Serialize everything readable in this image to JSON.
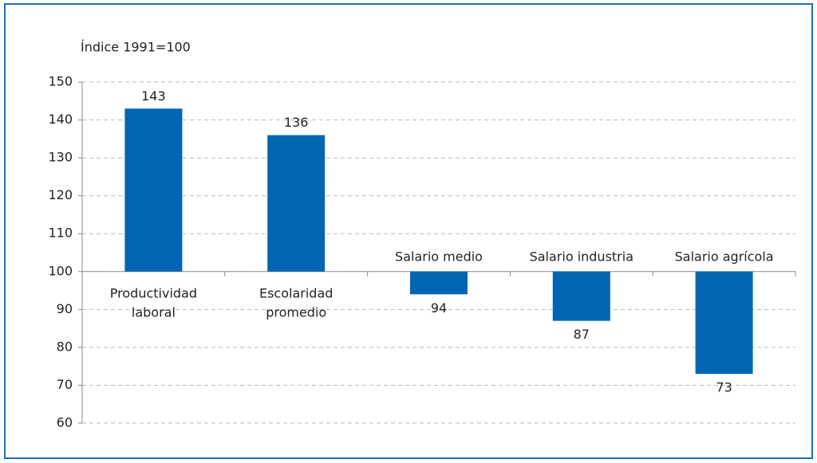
{
  "chart_data": {
    "type": "bar",
    "ylabel": "Índice 1991=100",
    "categories": [
      [
        "Productividad",
        "laboral"
      ],
      [
        "Escolaridad",
        "promedio"
      ],
      [
        "Salario medio"
      ],
      [
        "Salario industria"
      ],
      [
        "Salario agrícola"
      ]
    ],
    "values": [
      143,
      136,
      94,
      87,
      73
    ],
    "color": "#0066b3",
    "baseline": 100,
    "ylim": [
      60,
      150
    ],
    "yticks": [
      60,
      70,
      80,
      90,
      100,
      110,
      120,
      130,
      140,
      150
    ],
    "grid": true
  }
}
